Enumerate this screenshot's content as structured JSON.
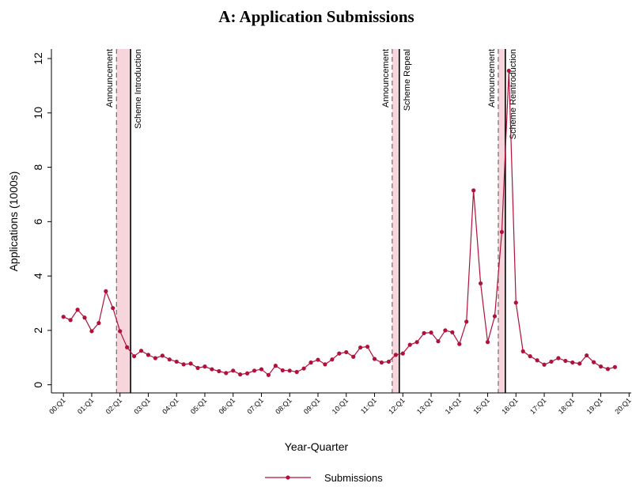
{
  "chart_data": {
    "type": "line",
    "title": "A: Application Submissions",
    "x_label": "Year-Quarter",
    "y_label": "Applications (1000s)",
    "x": [
      0,
      1,
      2,
      3,
      4,
      5,
      6,
      7,
      8,
      9,
      10,
      11,
      12,
      13,
      14,
      15,
      16,
      17,
      18,
      19,
      20,
      21,
      22,
      23,
      24,
      25,
      26,
      27,
      28,
      29,
      30,
      31,
      32,
      33,
      34,
      35,
      36,
      37,
      38,
      39,
      40,
      41,
      42,
      43,
      44,
      45,
      46,
      47,
      48,
      49,
      50,
      51,
      52,
      53,
      54,
      55,
      56,
      57,
      58,
      59,
      60,
      61,
      62,
      63,
      64,
      65,
      66,
      67,
      68,
      69,
      70,
      71,
      72,
      73,
      74,
      75,
      76,
      77,
      78
    ],
    "series": [
      {
        "name": "Submissions",
        "color": "#b0113a",
        "values": [
          2.5,
          2.38,
          2.76,
          2.47,
          1.97,
          2.27,
          3.44,
          2.82,
          1.97,
          1.38,
          1.05,
          1.25,
          1.1,
          0.98,
          1.07,
          0.93,
          0.85,
          0.75,
          0.78,
          0.62,
          0.67,
          0.57,
          0.5,
          0.43,
          0.52,
          0.38,
          0.42,
          0.52,
          0.57,
          0.36,
          0.7,
          0.53,
          0.52,
          0.47,
          0.6,
          0.82,
          0.92,
          0.75,
          0.93,
          1.15,
          1.2,
          1.03,
          1.37,
          1.4,
          0.95,
          0.82,
          0.85,
          1.1,
          1.15,
          1.47,
          1.57,
          1.9,
          1.92,
          1.6,
          2.0,
          1.93,
          1.5,
          2.32,
          7.15,
          3.73,
          1.57,
          2.52,
          5.62,
          11.55,
          3.02,
          1.23,
          1.05,
          0.9,
          0.74,
          0.85,
          0.98,
          0.88,
          0.82,
          0.78,
          1.08,
          0.83,
          0.67,
          0.58,
          0.65
        ]
      }
    ],
    "xlim": [
      -1.7,
      80.3
    ],
    "xticks": [
      {
        "value": 0,
        "label": "00:Q1"
      },
      {
        "value": 4,
        "label": "01:Q1"
      },
      {
        "value": 8,
        "label": "02:Q1"
      },
      {
        "value": 12,
        "label": "03:Q1"
      },
      {
        "value": 16,
        "label": "04:Q1"
      },
      {
        "value": 20,
        "label": "05:Q1"
      },
      {
        "value": 24,
        "label": "06:Q1"
      },
      {
        "value": 28,
        "label": "07:Q1"
      },
      {
        "value": 32,
        "label": "08:Q1"
      },
      {
        "value": 36,
        "label": "09:Q1"
      },
      {
        "value": 40,
        "label": "10:Q1"
      },
      {
        "value": 44,
        "label": "11:Q1"
      },
      {
        "value": 48,
        "label": "12:Q1"
      },
      {
        "value": 52,
        "label": "13:Q1"
      },
      {
        "value": 56,
        "label": "14:Q1"
      },
      {
        "value": 60,
        "label": "15:Q1"
      },
      {
        "value": 64,
        "label": "16:Q1"
      },
      {
        "value": 68,
        "label": "17:Q1"
      },
      {
        "value": 72,
        "label": "18:Q1"
      },
      {
        "value": 76,
        "label": "19:Q1"
      },
      {
        "value": 80,
        "label": "20:Q1"
      }
    ],
    "ylim": [
      -0.3,
      12.35
    ],
    "yticks": [
      0,
      2,
      4,
      6,
      8,
      10,
      12
    ],
    "grid": false,
    "shaded_spans": [
      [
        7.5,
        9.5
      ],
      [
        46.5,
        47.5
      ],
      [
        61.5,
        62.5
      ]
    ],
    "shade_color": "#f6d5dc",
    "events": [
      {
        "label": "Announcement",
        "x": 7.5,
        "line": "dashed"
      },
      {
        "label": "Scheme Introduction",
        "x": 9.5,
        "line": "solid"
      },
      {
        "label": "Announcement",
        "x": 46.5,
        "line": "dashed"
      },
      {
        "label": "Scheme Repeal",
        "x": 47.5,
        "line": "solid"
      },
      {
        "label": "Announcement",
        "x": 61.5,
        "line": "dashed"
      },
      {
        "label": "Scheme Reintroduction",
        "x": 62.5,
        "line": "solid"
      }
    ],
    "legend": "bottom"
  }
}
